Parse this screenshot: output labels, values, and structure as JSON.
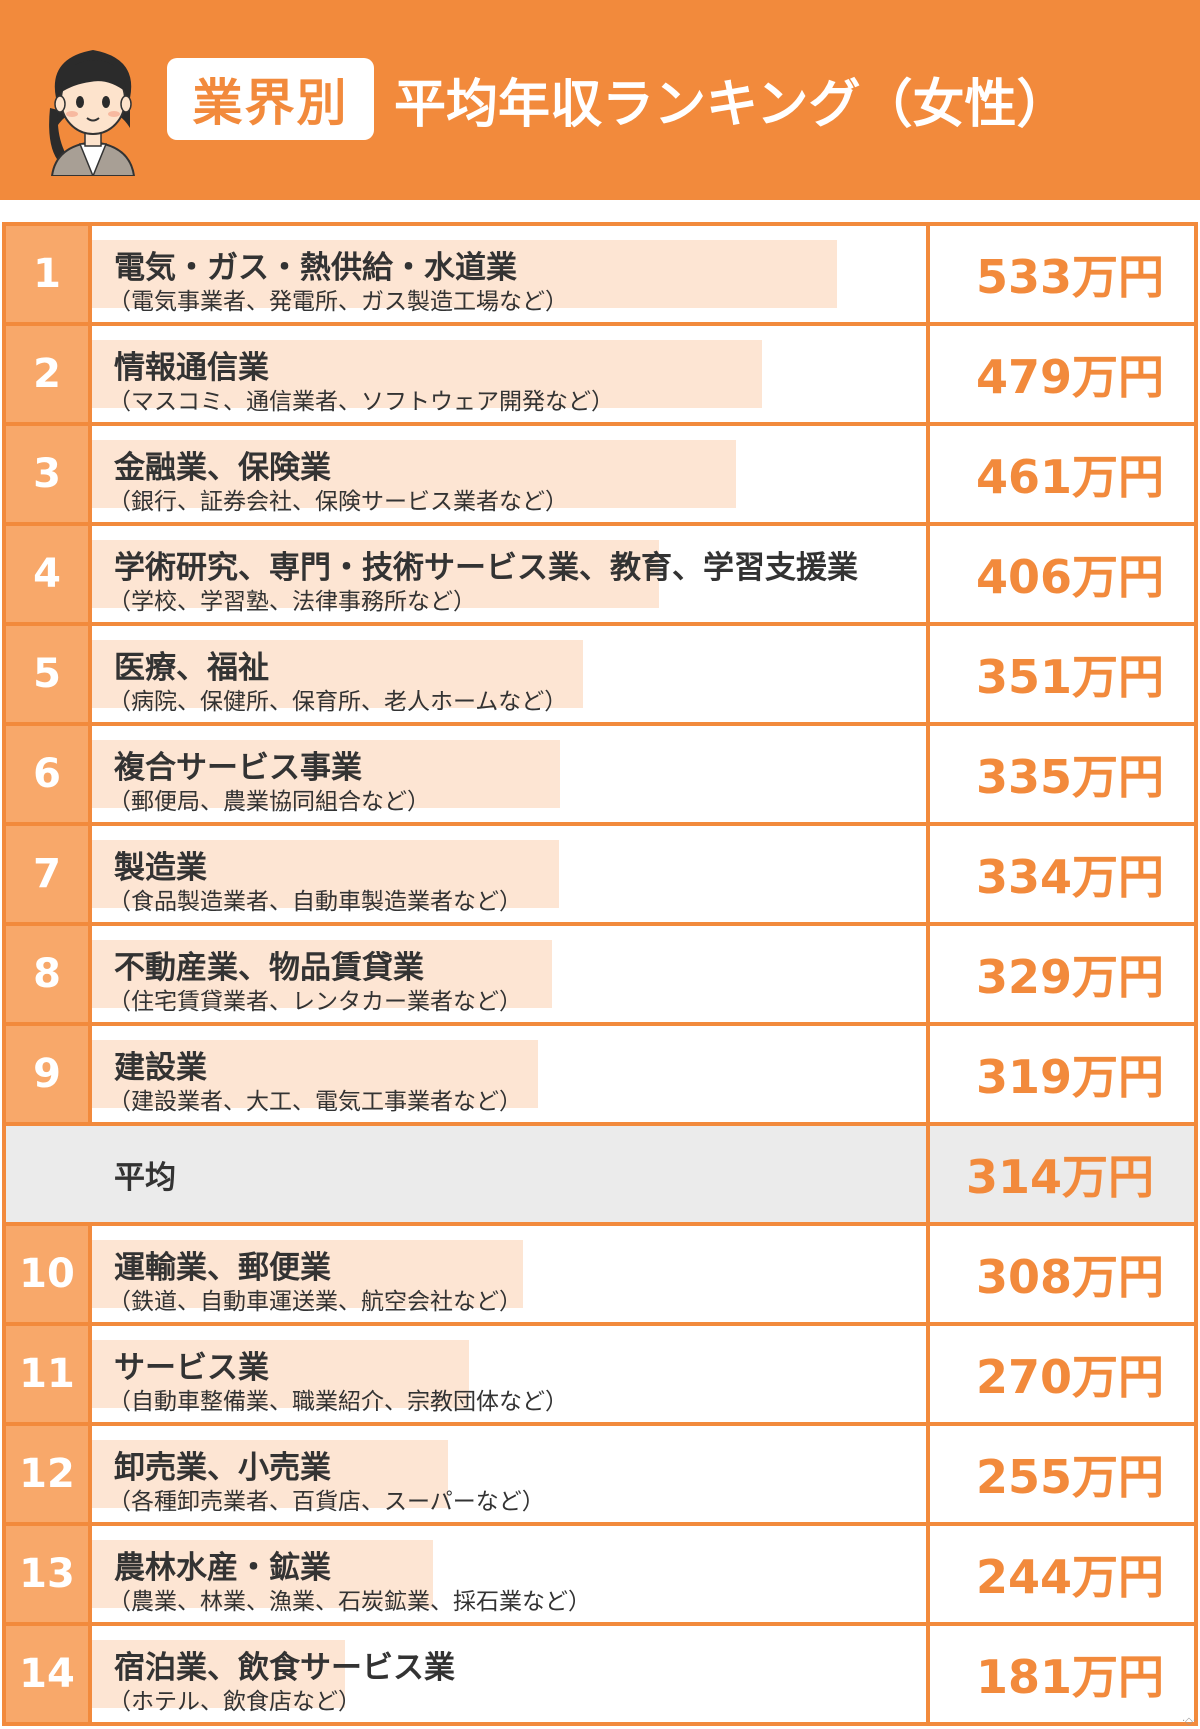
{
  "header": {
    "badge": "業界別",
    "title": "平均年収ランキング（女性）"
  },
  "chart_data": {
    "type": "table",
    "unit": "万円",
    "rows": [
      {
        "rank": "1",
        "name": "電気・ガス・熱供給・水道業",
        "sub": "（電気事業者、発電所、ガス製造工場など）",
        "value": 533,
        "value_label": "533万円"
      },
      {
        "rank": "2",
        "name": "情報通信業",
        "sub": "（マスコミ、通信業者、ソフトウェア開発など）",
        "value": 479,
        "value_label": "479万円"
      },
      {
        "rank": "3",
        "name": "金融業、保険業",
        "sub": "（銀行、証券会社、保険サービス業者など）",
        "value": 461,
        "value_label": "461万円"
      },
      {
        "rank": "4",
        "name": "学術研究、専門・技術サービス業、教育、学習支援業",
        "sub": "（学校、学習塾、法律事務所など）",
        "value": 406,
        "value_label": "406万円"
      },
      {
        "rank": "5",
        "name": "医療、福祉",
        "sub": "（病院、保健所、保育所、老人ホームなど）",
        "value": 351,
        "value_label": "351万円"
      },
      {
        "rank": "6",
        "name": "複合サービス事業",
        "sub": "（郵便局、農業協同組合など）",
        "value": 335,
        "value_label": "335万円"
      },
      {
        "rank": "7",
        "name": "製造業",
        "sub": "（食品製造業者、自動車製造業者など）",
        "value": 334,
        "value_label": "334万円"
      },
      {
        "rank": "8",
        "name": "不動産業、物品賃貸業",
        "sub": "（住宅賃貸業者、レンタカー業者など）",
        "value": 329,
        "value_label": "329万円"
      },
      {
        "rank": "9",
        "name": "建設業",
        "sub": "（建設業者、大工、電気工事業者など）",
        "value": 319,
        "value_label": "319万円"
      },
      {
        "rank": "",
        "name": "平均",
        "sub": "",
        "value": 314,
        "value_label": "314万円",
        "is_average": true
      },
      {
        "rank": "10",
        "name": "運輸業、郵便業",
        "sub": "（鉄道、自動車運送業、航空会社など）",
        "value": 308,
        "value_label": "308万円"
      },
      {
        "rank": "11",
        "name": "サービス業",
        "sub": "（自動車整備業、職業紹介、宗教団体など）",
        "value": 270,
        "value_label": "270万円"
      },
      {
        "rank": "12",
        "name": "卸売業、小売業",
        "sub": "（各種卸売業者、百貨店、スーパーなど）",
        "value": 255,
        "value_label": "255万円"
      },
      {
        "rank": "13",
        "name": "農林水産・鉱業",
        "sub": "（農業、林業、漁業、石炭鉱業、採石業など）",
        "value": 244,
        "value_label": "244万円"
      },
      {
        "rank": "14",
        "name": "宿泊業、飲食サービス業",
        "sub": "（ホテル、飲食店など）",
        "value": 181,
        "value_label": "181万円"
      }
    ]
  },
  "colors": {
    "accent": "#f28a3c",
    "rank_bg": "#f8a86a",
    "bar": "#fde5d3",
    "average_bg": "#ebebeb",
    "text": "#333333"
  }
}
